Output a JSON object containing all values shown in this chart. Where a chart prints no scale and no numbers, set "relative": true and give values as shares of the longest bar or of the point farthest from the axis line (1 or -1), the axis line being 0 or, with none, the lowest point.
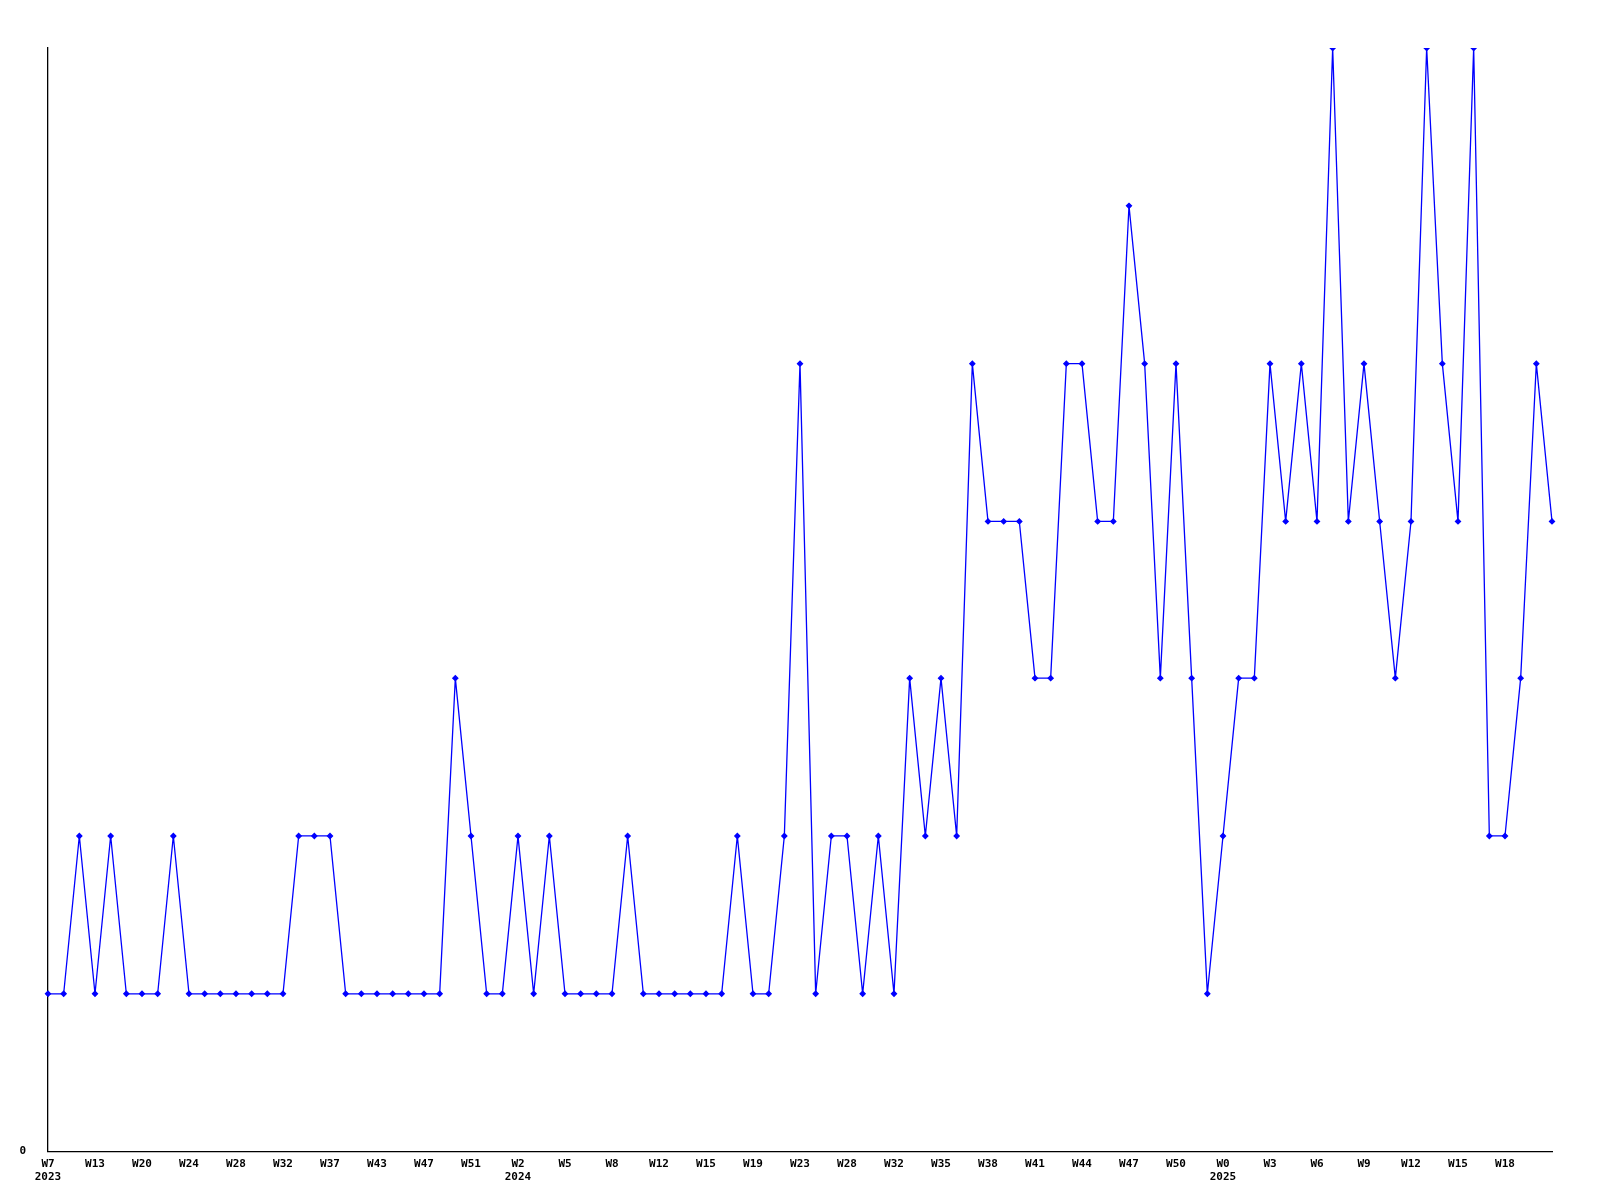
{
  "chart_data": {
    "type": "line",
    "relative": true,
    "grid": false,
    "legend": false,
    "marker": "diamond",
    "line_style": "solid",
    "annotations": [
      "0"
    ],
    "categories": [
      "W7\n2023",
      null,
      null,
      "W13",
      null,
      null,
      "W20",
      null,
      null,
      "W24",
      null,
      null,
      "W28",
      null,
      null,
      "W32",
      null,
      null,
      "W37",
      null,
      null,
      "W43",
      null,
      null,
      "W47",
      null,
      null,
      "W51",
      null,
      null,
      "W2\n2024",
      null,
      null,
      "W5",
      null,
      null,
      "W8",
      null,
      null,
      "W12",
      null,
      null,
      "W15",
      null,
      null,
      "W19",
      null,
      null,
      "W23",
      null,
      null,
      "W28",
      null,
      null,
      "W32",
      null,
      null,
      "W35",
      null,
      null,
      "W38",
      null,
      null,
      "W41",
      null,
      null,
      "W44",
      null,
      null,
      "W47",
      null,
      null,
      "W50",
      null,
      null,
      "W0\n2025",
      null,
      null,
      "W3",
      null,
      null,
      "W6",
      null,
      null,
      "W9",
      null,
      null,
      "W12",
      null,
      null,
      "W15",
      null,
      null,
      "W18",
      null,
      null,
      null
    ],
    "series": [
      {
        "color": "#0000ff",
        "values": [
          0.143,
          0.143,
          0.286,
          0.143,
          0.286,
          0.143,
          0.143,
          0.143,
          0.286,
          0.143,
          0.143,
          0.143,
          0.143,
          0.143,
          0.143,
          0.143,
          0.286,
          0.286,
          0.286,
          0.143,
          0.143,
          0.143,
          0.143,
          0.143,
          0.143,
          0.143,
          0.429,
          0.286,
          0.143,
          0.143,
          0.286,
          0.143,
          0.286,
          0.143,
          0.143,
          0.143,
          0.143,
          0.286,
          0.143,
          0.143,
          0.143,
          0.143,
          0.143,
          0.143,
          0.286,
          0.143,
          0.143,
          0.286,
          0.714,
          0.143,
          0.286,
          0.286,
          0.143,
          0.286,
          0.143,
          0.429,
          0.286,
          0.429,
          0.286,
          0.714,
          0.571,
          0.571,
          0.571,
          0.429,
          0.429,
          0.714,
          0.714,
          0.571,
          0.571,
          0.857,
          0.714,
          0.429,
          0.714,
          0.429,
          0.143,
          0.286,
          0.429,
          0.429,
          0.714,
          0.571,
          0.714,
          0.571,
          1,
          0.571,
          0.714,
          0.571,
          0.429,
          0.571,
          1,
          0.714,
          0.571,
          1,
          0.286,
          0.286,
          0.429,
          0.714,
          0.571
        ]
      }
    ]
  }
}
